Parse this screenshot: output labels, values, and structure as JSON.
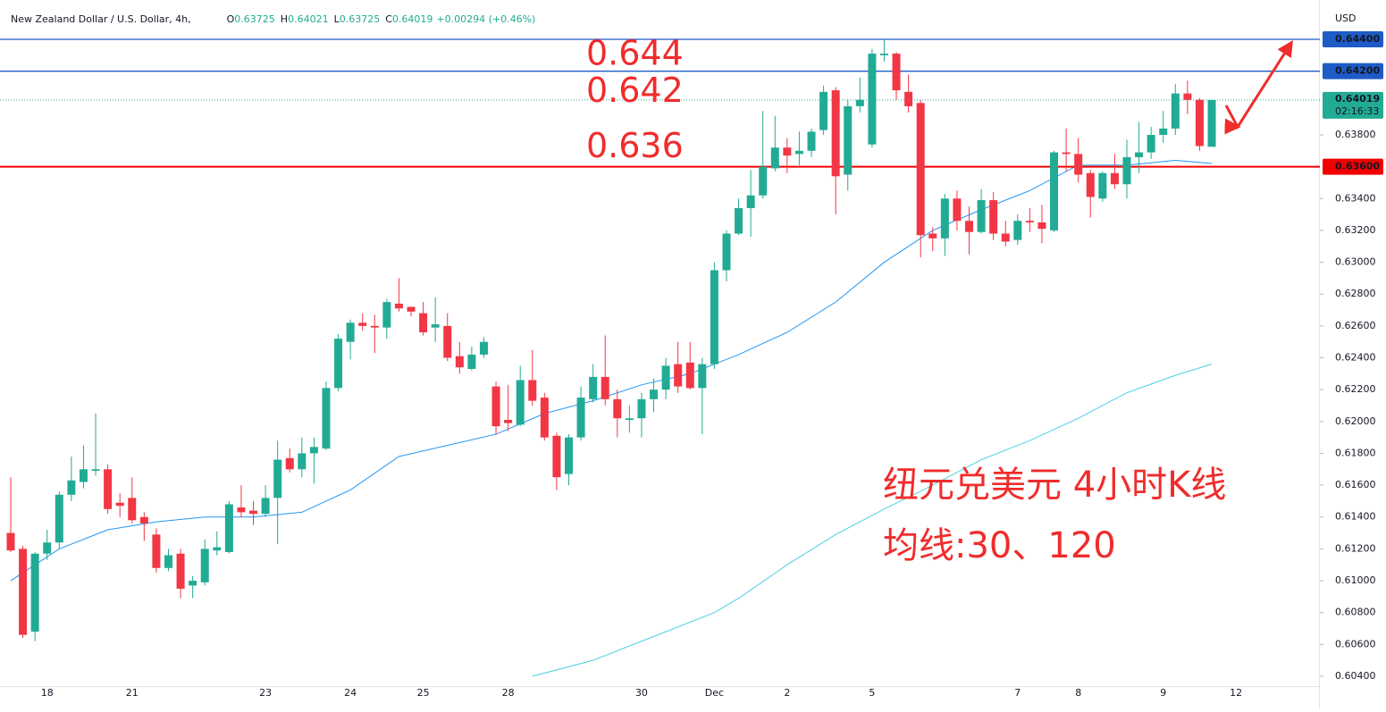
{
  "chart_data": {
    "type": "candlestick",
    "header": {
      "symbol": "New Zealand Dollar / U.S. Dollar, 4h,",
      "ohlc": [
        {
          "label": "O",
          "value": "0.63725"
        },
        {
          "label": "H",
          "value": "0.64021"
        },
        {
          "label": "L",
          "value": "0.63725"
        },
        {
          "label": "C",
          "value": "0.64019"
        }
      ],
      "change": "+0.00294 (+0.46%)"
    },
    "y_unit": "USD",
    "up_color": "#22ab94",
    "down_color": "#f23645",
    "categories": [
      null,
      null,
      null,
      "18",
      null,
      null,
      null,
      null,
      null,
      null,
      "21",
      null,
      null,
      null,
      null,
      null,
      null,
      null,
      null,
      null,
      null,
      "23",
      null,
      null,
      null,
      null,
      null,
      null,
      "24",
      null,
      null,
      null,
      null,
      null,
      "25",
      null,
      null,
      null,
      null,
      null,
      null,
      "28",
      null,
      null,
      null,
      null,
      null,
      null,
      null,
      null,
      null,
      null,
      "30",
      null,
      null,
      null,
      null,
      null,
      "Dec",
      null,
      null,
      null,
      null,
      null,
      "2",
      null,
      null,
      null,
      null,
      null,
      null,
      "5",
      null,
      null,
      null,
      null,
      null,
      null,
      null,
      null,
      null,
      null,
      null,
      "7",
      null,
      null,
      null,
      null,
      "8",
      null,
      null,
      null,
      null,
      null,
      null,
      "9",
      null,
      null,
      null,
      null,
      null,
      "12"
    ],
    "open": [
      0.613,
      0.612,
      0.6068,
      0.6117,
      0.6124,
      0.6154,
      0.6162,
      0.6169,
      0.617,
      0.6149,
      0.6152,
      0.614,
      0.6129,
      0.6108,
      0.6117,
      0.6097,
      0.6099,
      0.6119,
      0.6118,
      0.6146,
      0.6144,
      0.6142,
      0.6152,
      0.6177,
      0.617,
      0.618,
      0.6183,
      0.6221,
      0.625,
      0.6262,
      0.626,
      0.6259,
      0.6274,
      0.6272,
      0.6268,
      0.6259,
      0.626,
      0.6241,
      0.6233,
      0.6242,
      0.6222,
      0.6201,
      0.6198,
      0.6226,
      0.6215,
      0.6191,
      0.6167,
      0.619,
      0.6214,
      0.6228,
      0.6214,
      0.6201,
      0.6202,
      0.6214,
      0.622,
      0.6236,
      0.6237,
      0.6221,
      0.6236,
      0.6295,
      0.6318,
      0.6334,
      0.6342,
      0.6359,
      0.6372,
      0.6368,
      0.637,
      0.6383,
      0.6408,
      0.6355,
      0.6398,
      0.6374,
      0.643,
      0.6431,
      0.6407,
      0.64,
      0.6318,
      0.6315,
      0.634,
      0.6326,
      0.6319,
      0.6339,
      0.6318,
      0.6314,
      0.6326,
      0.6325,
      0.632,
      0.6369,
      0.6368,
      0.6356,
      0.634,
      0.6356,
      0.6349,
      0.6366,
      0.6369,
      0.638,
      0.6384,
      0.6406,
      0.6402,
      0.63725,
      null,
      null
    ],
    "high": [
      0.6165,
      0.6122,
      0.6118,
      0.6132,
      0.6156,
      0.6178,
      0.6185,
      0.6205,
      0.6173,
      0.6155,
      0.6165,
      0.6143,
      0.6133,
      0.612,
      0.612,
      0.6103,
      0.6126,
      0.6131,
      0.615,
      0.616,
      0.615,
      0.616,
      0.6188,
      0.6183,
      0.619,
      0.619,
      0.6225,
      0.6255,
      0.6264,
      0.6268,
      0.6267,
      0.6277,
      0.629,
      0.6272,
      0.6275,
      0.6278,
      0.6268,
      0.625,
      0.6247,
      0.6253,
      0.6225,
      0.6223,
      0.6235,
      0.6245,
      0.6218,
      0.6193,
      0.6192,
      0.6222,
      0.6236,
      0.6254,
      0.622,
      0.621,
      0.6218,
      0.6227,
      0.624,
      0.625,
      0.625,
      0.624,
      0.63,
      0.632,
      0.634,
      0.6358,
      0.6395,
      0.6392,
      0.6378,
      0.6382,
      0.6384,
      0.6411,
      0.641,
      0.6402,
      0.6416,
      0.6434,
      0.644,
      0.6432,
      0.6418,
      0.6402,
      0.6322,
      0.6343,
      0.6345,
      0.6335,
      0.6346,
      0.6344,
      0.6326,
      0.633,
      0.6334,
      0.6336,
      0.637,
      0.6384,
      0.6378,
      0.6358,
      0.6357,
      0.6368,
      0.6377,
      0.6388,
      0.6385,
      0.6395,
      0.6412,
      0.6414,
      0.6403,
      0.64021,
      null,
      null
    ],
    "low": [
      0.6118,
      0.6064,
      0.6062,
      0.6113,
      0.612,
      0.615,
      0.6158,
      0.6166,
      0.6142,
      0.614,
      0.6136,
      0.6125,
      0.6105,
      0.6106,
      0.6089,
      0.6089,
      0.6097,
      0.6116,
      0.6117,
      0.614,
      0.6135,
      0.614,
      0.6123,
      0.6168,
      0.6165,
      0.6161,
      0.6182,
      0.6219,
      0.6239,
      0.6257,
      0.6243,
      0.6252,
      0.6269,
      0.6266,
      0.6254,
      0.625,
      0.6238,
      0.623,
      0.6232,
      0.624,
      0.6192,
      0.6194,
      0.6197,
      0.621,
      0.6188,
      0.6157,
      0.616,
      0.6188,
      0.6212,
      0.621,
      0.619,
      0.6193,
      0.619,
      0.6206,
      0.6214,
      0.6218,
      0.622,
      0.6192,
      0.6233,
      0.6288,
      0.6317,
      0.6316,
      0.634,
      0.6357,
      0.6356,
      0.6361,
      0.6366,
      0.638,
      0.633,
      0.6345,
      0.6394,
      0.6372,
      0.6426,
      0.6402,
      0.6394,
      0.6303,
      0.6307,
      0.6304,
      0.632,
      0.6305,
      0.6318,
      0.6314,
      0.631,
      0.6311,
      0.6319,
      0.6312,
      0.6319,
      0.6357,
      0.635,
      0.6328,
      0.6338,
      0.6346,
      0.634,
      0.6356,
      0.6365,
      0.6375,
      0.638,
      0.6393,
      0.637,
      0.63725,
      null,
      null
    ],
    "close": [
      0.6119,
      0.6066,
      0.6117,
      0.6124,
      0.6154,
      0.6163,
      0.617,
      0.617,
      0.6145,
      0.6147,
      0.6138,
      0.6136,
      0.6108,
      0.6116,
      0.6095,
      0.61,
      0.612,
      0.6121,
      0.6148,
      0.6143,
      0.6142,
      0.6152,
      0.6176,
      0.617,
      0.618,
      0.6184,
      0.6221,
      0.6252,
      0.6262,
      0.626,
      0.6259,
      0.6275,
      0.6271,
      0.6269,
      0.6256,
      0.6261,
      0.624,
      0.6234,
      0.6242,
      0.625,
      0.6197,
      0.6199,
      0.6226,
      0.6213,
      0.619,
      0.6165,
      0.619,
      0.6215,
      0.6228,
      0.6214,
      0.6202,
      0.6202,
      0.6214,
      0.622,
      0.6235,
      0.6222,
      0.6221,
      0.6236,
      0.6295,
      0.6318,
      0.6334,
      0.6342,
      0.636,
      0.6372,
      0.6367,
      0.637,
      0.6382,
      0.6407,
      0.6354,
      0.6398,
      0.6402,
      0.6431,
      0.6431,
      0.6408,
      0.6398,
      0.6317,
      0.6315,
      0.634,
      0.6326,
      0.6319,
      0.6339,
      0.6318,
      0.6313,
      0.6326,
      0.6325,
      0.6321,
      0.6369,
      0.6368,
      0.6355,
      0.6341,
      0.6356,
      0.6349,
      0.6366,
      0.6369,
      0.638,
      0.6384,
      0.6406,
      0.6402,
      0.6373,
      0.64019,
      null,
      null
    ],
    "moving_averages": [
      {
        "color": "#2196f3",
        "x": [
          0,
          4,
          8,
          12,
          16,
          20,
          24,
          28,
          32,
          36,
          40,
          44,
          48,
          52,
          56,
          60,
          64,
          68,
          72,
          76,
          80,
          84,
          88,
          92,
          96,
          99
        ],
        "values": [
          0.61,
          0.612,
          0.6132,
          0.6137,
          0.614,
          0.614,
          0.6143,
          0.6157,
          0.6178,
          0.6185,
          0.6192,
          0.6205,
          0.6213,
          0.6223,
          0.623,
          0.6242,
          0.6256,
          0.6275,
          0.63,
          0.632,
          0.6333,
          0.6345,
          0.6361,
          0.6361,
          0.6364,
          0.6362
        ]
      },
      {
        "color": "#4dd0e1",
        "x": [
          43,
          48,
          52,
          58,
          60,
          64,
          68,
          72,
          76,
          80,
          84,
          88,
          92,
          96,
          99
        ],
        "values": [
          0.604,
          0.605,
          0.6062,
          0.608,
          0.6089,
          0.611,
          0.6129,
          0.6145,
          0.616,
          0.6176,
          0.6188,
          0.6202,
          0.6218,
          0.6229,
          0.6236
        ]
      }
    ],
    "levels": [
      {
        "value": 0.644,
        "label": "0.64400",
        "annotation": "0.644",
        "color": "#1e5bc6"
      },
      {
        "value": 0.642,
        "label": "0.64200",
        "annotation": "0.642",
        "color": "#1e5bc6"
      },
      {
        "value": 0.636,
        "label": "0.63600",
        "annotation": "0.636",
        "color": "#f20000"
      }
    ],
    "last": {
      "value": 0.64019,
      "label": "0.64019",
      "countdown": "02:16:33",
      "color": "#22ab94"
    },
    "notes": [
      "纽元兑美元 4小时K线",
      "均线:30、120"
    ],
    "ylim": [
      0.60327,
      0.64647
    ],
    "yticks": [
      {
        "value": 0.604,
        "label": "0.60400"
      },
      {
        "value": 0.606,
        "label": "0.60600"
      },
      {
        "value": 0.608,
        "label": "0.60800"
      },
      {
        "value": 0.61,
        "label": "0.61000"
      },
      {
        "value": 0.612,
        "label": "0.61200"
      },
      {
        "value": 0.614,
        "label": "0.61400"
      },
      {
        "value": 0.616,
        "label": "0.61600"
      },
      {
        "value": 0.618,
        "label": "0.61800"
      },
      {
        "value": 0.62,
        "label": "0.62000"
      },
      {
        "value": 0.622,
        "label": "0.62200"
      },
      {
        "value": 0.624,
        "label": "0.62400"
      },
      {
        "value": 0.626,
        "label": "0.62600"
      },
      {
        "value": 0.628,
        "label": "0.62800"
      },
      {
        "value": 0.63,
        "label": "0.63000"
      },
      {
        "value": 0.632,
        "label": "0.63200"
      },
      {
        "value": 0.634,
        "label": "0.63400"
      },
      {
        "value": 0.638,
        "label": "0.63800"
      }
    ]
  }
}
